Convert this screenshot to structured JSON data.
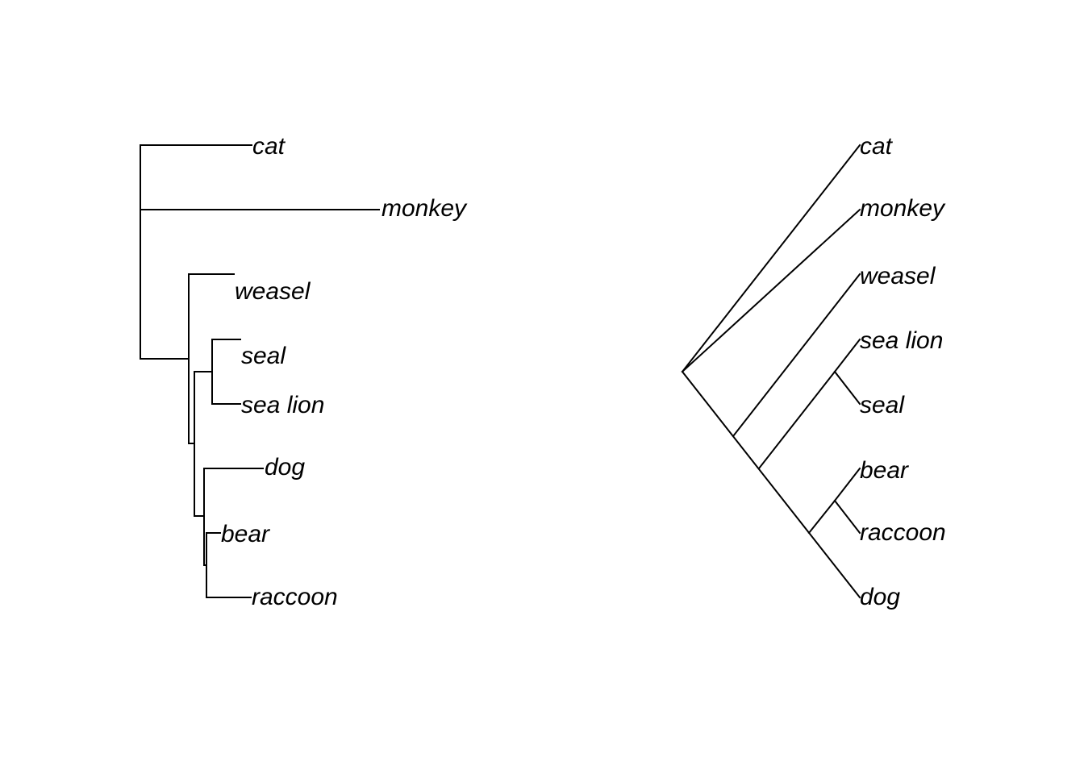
{
  "trees": [
    {
      "style": "phylogram",
      "tips": [
        "cat",
        "monkey",
        "weasel",
        "seal",
        "sea lion",
        "dog",
        "bear",
        "raccoon"
      ]
    },
    {
      "style": "cladogram",
      "tips": [
        "cat",
        "monkey",
        "weasel",
        "sea lion",
        "seal",
        "bear",
        "raccoon",
        "dog"
      ]
    }
  ],
  "line_color": "#000000"
}
